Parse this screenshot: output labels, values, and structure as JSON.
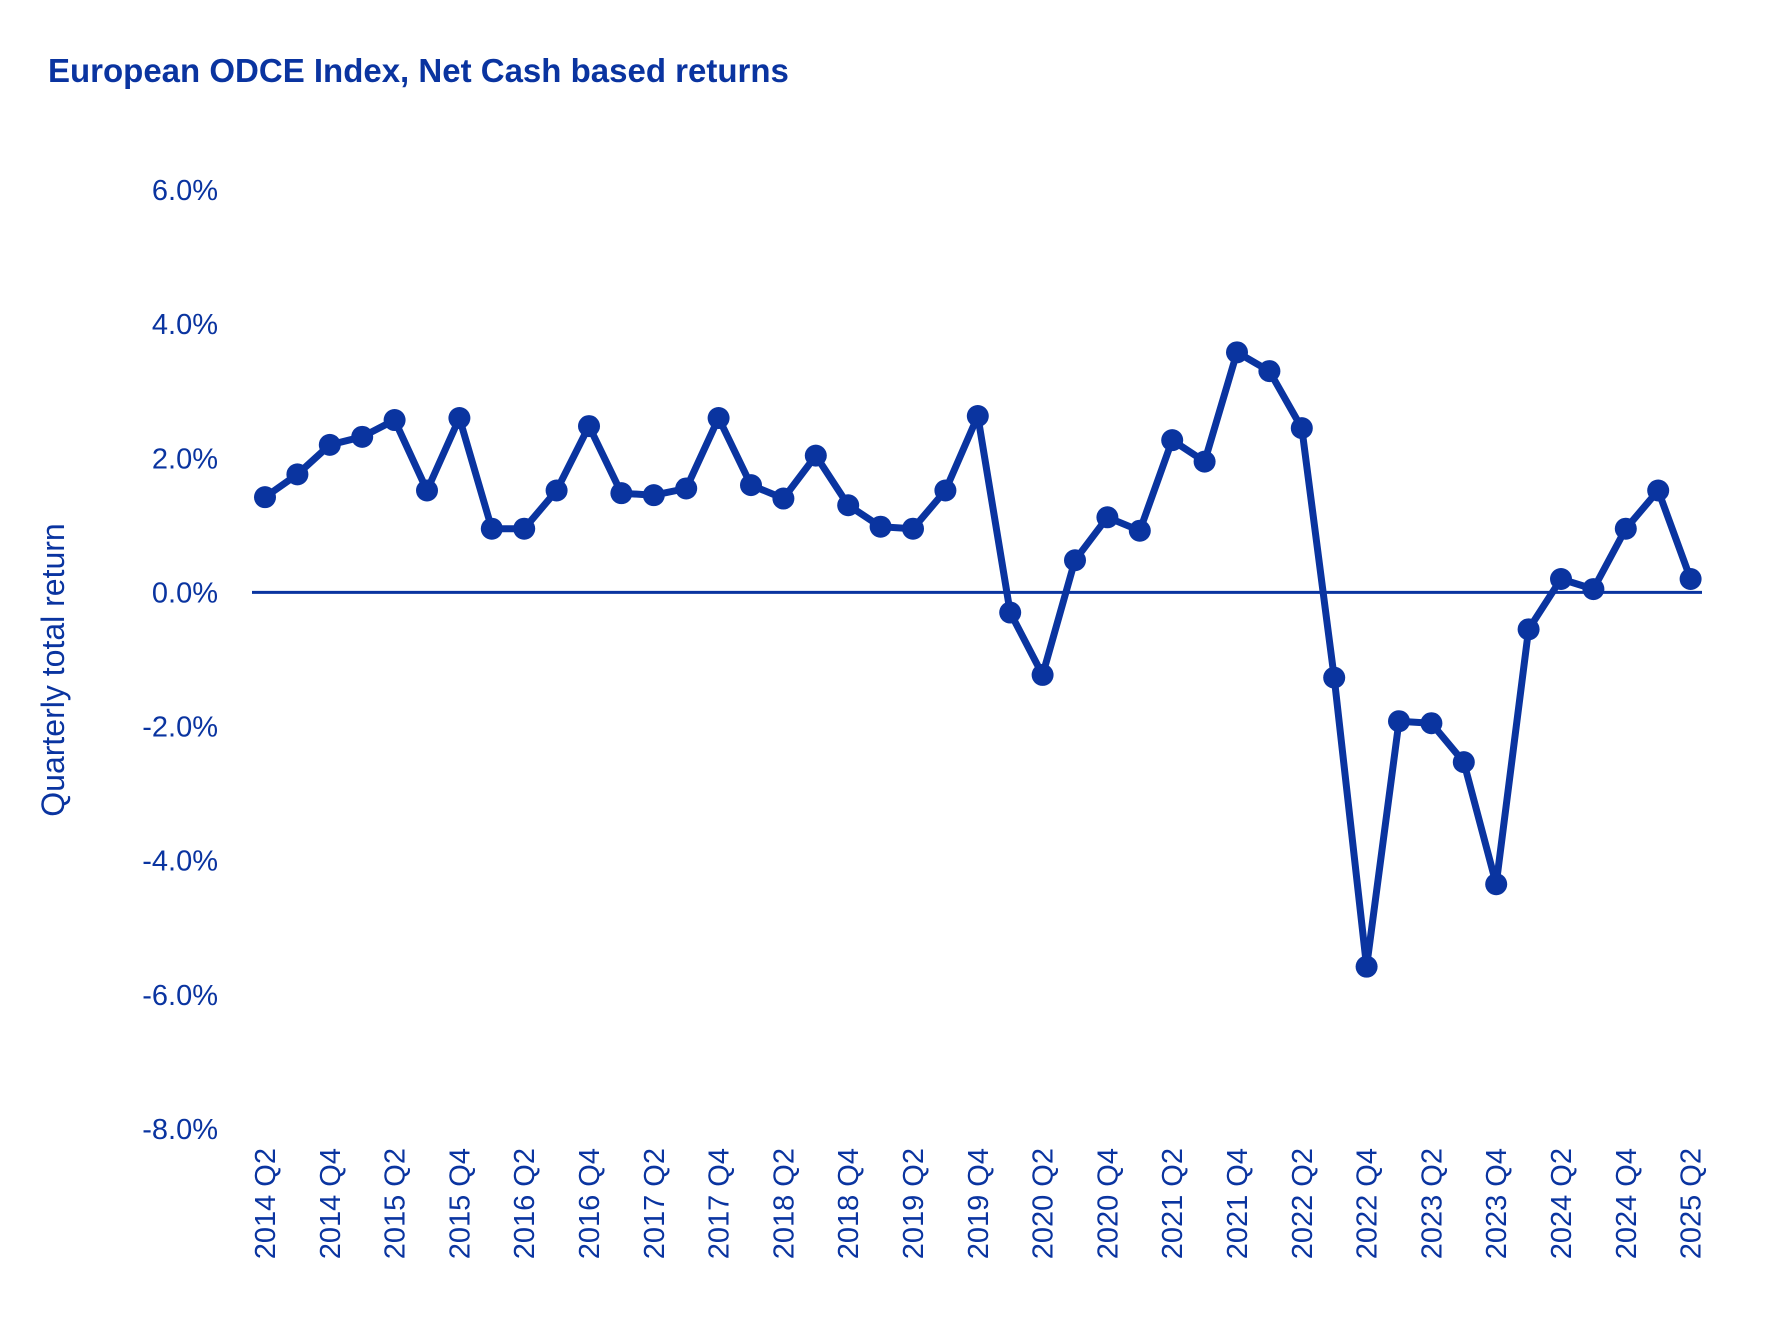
{
  "chart_data": {
    "type": "line",
    "title": "European ODCE Index, Net Cash based returns",
    "xlabel": "",
    "ylabel": "Quarterly total return",
    "ylim": [
      -8.0,
      6.0
    ],
    "yticks": [
      6.0,
      4.0,
      2.0,
      0.0,
      -2.0,
      -4.0,
      -6.0,
      -8.0
    ],
    "ytick_labels": [
      "6.0%",
      "4.0%",
      "2.0%",
      "0.0%",
      "-2.0%",
      "-4.0%",
      "-6.0%",
      "-8.0%"
    ],
    "categories": [
      "2014 Q2",
      "2014 Q3",
      "2014 Q4",
      "2015 Q1",
      "2015 Q2",
      "2015 Q3",
      "2015 Q4",
      "2016 Q1",
      "2016 Q2",
      "2016 Q3",
      "2016 Q4",
      "2017 Q1",
      "2017 Q2",
      "2017 Q3",
      "2017 Q4",
      "2018 Q1",
      "2018 Q2",
      "2018 Q3",
      "2018 Q4",
      "2019 Q1",
      "2019 Q2",
      "2019 Q3",
      "2019 Q4",
      "2020 Q1",
      "2020 Q2",
      "2020 Q3",
      "2020 Q4",
      "2021 Q1",
      "2021 Q2",
      "2021 Q3",
      "2021 Q4",
      "2022 Q1",
      "2022 Q2",
      "2022 Q3",
      "2022 Q4",
      "2023 Q1",
      "2023 Q2",
      "2023 Q3",
      "2023 Q4",
      "2024 Q1",
      "2024 Q2",
      "2024 Q3",
      "2024 Q4",
      "2025 Q1",
      "2025 Q2"
    ],
    "xtick_labels": [
      "2014 Q2",
      "",
      "2014 Q4",
      "",
      "2015 Q2",
      "",
      "2015 Q4",
      "",
      "2016 Q2",
      "",
      "2016 Q4",
      "",
      "2017 Q2",
      "",
      "2017 Q4",
      "",
      "2018 Q2",
      "",
      "2018 Q4",
      "",
      "2019 Q2",
      "",
      "2019 Q4",
      "",
      "2020 Q2",
      "",
      "2020 Q4",
      "",
      "2021 Q2",
      "",
      "2021 Q4",
      "",
      "2022 Q2",
      "",
      "2022 Q4",
      "",
      "2023 Q2",
      "",
      "2023 Q4",
      "",
      "2024 Q2",
      "",
      "2024 Q4",
      "",
      "2025 Q2"
    ],
    "series": [
      {
        "name": "European ODCE Index",
        "color": "#0a34a0",
        "values": [
          1.42,
          1.76,
          2.2,
          2.32,
          2.57,
          1.52,
          2.6,
          0.95,
          0.95,
          1.52,
          2.48,
          1.48,
          1.45,
          1.55,
          2.6,
          1.6,
          1.4,
          2.04,
          1.3,
          0.98,
          0.95,
          1.52,
          2.63,
          -0.3,
          -1.23,
          0.48,
          1.12,
          0.92,
          2.27,
          1.95,
          3.58,
          3.3,
          2.45,
          -1.27,
          -5.58,
          -1.92,
          -1.95,
          -2.53,
          -4.35,
          -0.55,
          0.2,
          0.05,
          0.95,
          1.52,
          0.2
        ]
      }
    ],
    "zero_line": true,
    "grid": false
  }
}
